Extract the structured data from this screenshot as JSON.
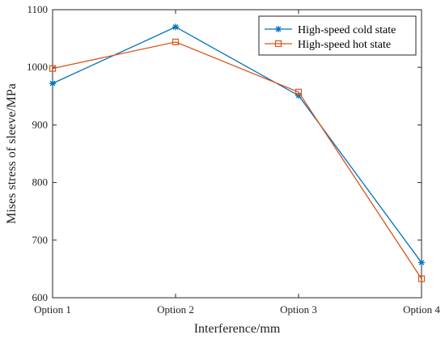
{
  "chart_data": {
    "type": "line",
    "categories": [
      "Option 1",
      "Option 2",
      "Option 3",
      "Option 4"
    ],
    "series": [
      {
        "name": "High-speed cold state",
        "values": [
          972,
          1070,
          951,
          661
        ],
        "color": "#0072BD",
        "marker": "asterisk"
      },
      {
        "name": "High-speed hot state",
        "values": [
          998,
          1044,
          957,
          633
        ],
        "color": "#D95319",
        "marker": "square"
      }
    ],
    "xlabel": "Interference/mm",
    "ylabel": "Mises stress of sleeve/MPa",
    "ylim": [
      600,
      1100
    ],
    "yticks": [
      "600",
      "700",
      "800",
      "900",
      "1000",
      "1100"
    ],
    "grid": false,
    "legend_position": "top-right"
  }
}
